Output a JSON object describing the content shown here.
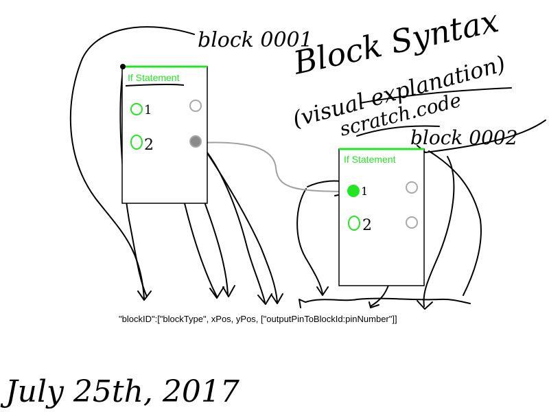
{
  "annotations": {
    "label_block1": "block 0001",
    "label_block2": "block 0002",
    "title_line1": "Block Syntax",
    "title_line2": "(visual explanation)",
    "title_line3": "scratch.code",
    "format_string": "\"blockID\":[\"blockType\", xPos, yPos, [\"outputPinToBlockId:pinNumber\"]]",
    "date": "July 25th, 2017"
  },
  "blocks": [
    {
      "header": "If Statement",
      "input_pins": [
        "1",
        "2"
      ]
    },
    {
      "header": "If Statement",
      "input_pins": [
        "1",
        "2"
      ]
    }
  ],
  "colors": {
    "ink": "#000000",
    "accent": "#22e622",
    "pin_outline": "#a8a8a8",
    "pin_active_fill": "#8a8a8a",
    "connector": "#a0a0a0"
  }
}
